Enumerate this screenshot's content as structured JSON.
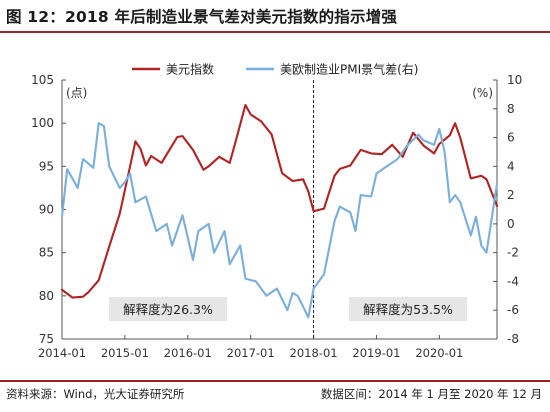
{
  "title": "图 12：2018 年后制造业景气差对美元指数的指示增强",
  "footer": {
    "source": "资料来源：Wind，光大证券研究所",
    "range": "数据区间：2014 年 1 月至 2020 年 12 月"
  },
  "chart_data": {
    "type": "line",
    "x_ticks": [
      "2014-01",
      "2015-01",
      "2016-01",
      "2017-01",
      "2018-01",
      "2019-01",
      "2020-01"
    ],
    "x_range": [
      "2014-01",
      "2020-12"
    ],
    "left_axis": {
      "label": "(点)",
      "ylim": [
        75,
        105
      ],
      "ticks": [
        75,
        80,
        85,
        90,
        95,
        100,
        105
      ]
    },
    "right_axis": {
      "label": "(%)",
      "ylim": [
        -8,
        10
      ],
      "ticks": [
        -8,
        -6,
        -4,
        -2,
        0,
        2,
        4,
        6,
        8,
        10
      ]
    },
    "legend": {
      "position": "top"
    },
    "divider_date": "2018-01",
    "annotations": [
      {
        "text": "解释度为26.3%",
        "period": "2014-2017"
      },
      {
        "text": "解释度为53.5%",
        "period": "2018-2020"
      }
    ],
    "series": [
      {
        "name": "美元指数",
        "axis": "left",
        "color": "#b22222",
        "dates": [
          "2014-01",
          "2014-03",
          "2014-05",
          "2014-06",
          "2014-08",
          "2014-10",
          "2014-12",
          "2015-02",
          "2015-03",
          "2015-04",
          "2015-05",
          "2015-06",
          "2015-08",
          "2015-09",
          "2015-11",
          "2015-12",
          "2016-02",
          "2016-04",
          "2016-05",
          "2016-07",
          "2016-09",
          "2016-10",
          "2016-12",
          "2017-01",
          "2017-03",
          "2017-05",
          "2017-07",
          "2017-09",
          "2017-11",
          "2017-12",
          "2018-01",
          "2018-03",
          "2018-05",
          "2018-06",
          "2018-08",
          "2018-10",
          "2018-12",
          "2019-02",
          "2019-04",
          "2019-06",
          "2019-08",
          "2019-10",
          "2019-12",
          "2020-01",
          "2020-03",
          "2020-04",
          "2020-05",
          "2020-07",
          "2020-09",
          "2020-10",
          "2020-12"
        ],
        "values": [
          80.7,
          79.8,
          79.9,
          80.4,
          81.8,
          85.7,
          89.5,
          95.0,
          97.9,
          97.0,
          95.1,
          96.2,
          95.4,
          96.4,
          98.4,
          98.5,
          96.9,
          94.6,
          95.0,
          96.1,
          95.4,
          97.6,
          102.1,
          101.0,
          100.2,
          98.7,
          94.2,
          93.3,
          93.5,
          92.1,
          89.8,
          90.1,
          93.9,
          94.7,
          95.1,
          96.9,
          96.5,
          96.4,
          97.5,
          96.1,
          98.9,
          97.4,
          96.5,
          97.6,
          98.6,
          100.0,
          98.3,
          93.6,
          93.9,
          93.5,
          90.4
        ]
      },
      {
        "name": "美欧制造业PMI景气差(右)",
        "axis": "right",
        "color": "#7aaedc",
        "dates": [
          "2014-01",
          "2014-02",
          "2014-04",
          "2014-05",
          "2014-07",
          "2014-08",
          "2014-09",
          "2014-10",
          "2014-12",
          "2015-01",
          "2015-02",
          "2015-03",
          "2015-05",
          "2015-07",
          "2015-09",
          "2015-10",
          "2015-12",
          "2016-02",
          "2016-03",
          "2016-05",
          "2016-06",
          "2016-08",
          "2016-09",
          "2016-11",
          "2016-12",
          "2017-02",
          "2017-04",
          "2017-06",
          "2017-08",
          "2017-09",
          "2017-10",
          "2017-12",
          "2018-01",
          "2018-03",
          "2018-05",
          "2018-06",
          "2018-08",
          "2018-09",
          "2018-10",
          "2018-12",
          "2019-01",
          "2019-03",
          "2019-05",
          "2019-07",
          "2019-09",
          "2019-10",
          "2019-12",
          "2020-01",
          "2020-02",
          "2020-03",
          "2020-04",
          "2020-05",
          "2020-07",
          "2020-08",
          "2020-09",
          "2020-10",
          "2020-12"
        ],
        "values": [
          0.5,
          3.8,
          2.5,
          4.5,
          3.9,
          7.0,
          6.8,
          4.0,
          2.5,
          2.9,
          3.5,
          1.5,
          1.9,
          -0.5,
          0.0,
          -1.5,
          0.6,
          -2.5,
          -0.5,
          0.0,
          -2.0,
          -0.5,
          -2.8,
          -1.5,
          -3.8,
          -4.0,
          -5.0,
          -4.5,
          -6.0,
          -4.8,
          -5.0,
          -6.5,
          -4.5,
          -3.5,
          0.2,
          1.2,
          0.8,
          -0.5,
          2.0,
          1.9,
          3.5,
          4.0,
          4.5,
          5.5,
          6.2,
          5.8,
          5.5,
          6.6,
          5.0,
          1.5,
          2.0,
          1.5,
          -0.8,
          0.5,
          -1.5,
          -2.0,
          2.8
        ]
      }
    ]
  }
}
